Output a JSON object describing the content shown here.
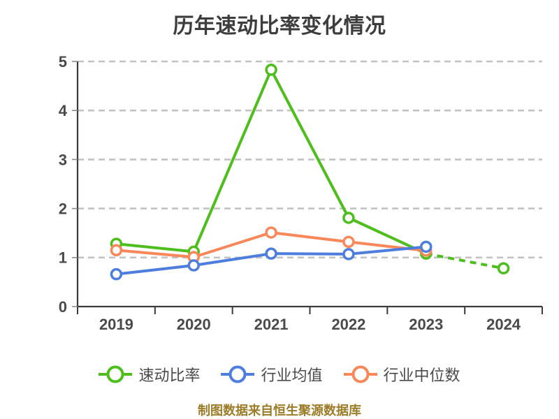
{
  "title": "历年速动比率变化情况",
  "footer": "制图数据来自恒生聚源数据库",
  "footer_color": "#9c7c28",
  "chart_data": {
    "type": "line",
    "title": "历年速动比率变化情况",
    "categories": [
      "2019",
      "2020",
      "2021",
      "2022",
      "2023",
      "2024"
    ],
    "series": [
      {
        "name": "速动比率",
        "color": "#4dbe1c",
        "values": [
          1.28,
          1.12,
          4.83,
          1.81,
          1.08,
          0.78
        ],
        "last_segment_dashed": true
      },
      {
        "name": "行业均值",
        "color": "#4d7ede",
        "values": [
          0.66,
          0.84,
          1.08,
          1.07,
          1.22,
          null
        ],
        "last_segment_dashed": false
      },
      {
        "name": "行业中位数",
        "color": "#f8875a",
        "values": [
          1.15,
          1.01,
          1.51,
          1.32,
          1.14,
          null
        ],
        "last_segment_dashed": false
      }
    ],
    "ylim": [
      0,
      5
    ],
    "yticks": [
      0,
      1,
      2,
      3,
      4,
      5
    ],
    "grid": "horizontal-dashed",
    "grid_color": "#c2c2c2",
    "axis_color": "#3a3a3a",
    "legend_position": "bottom",
    "marker": "circle-white-core"
  }
}
